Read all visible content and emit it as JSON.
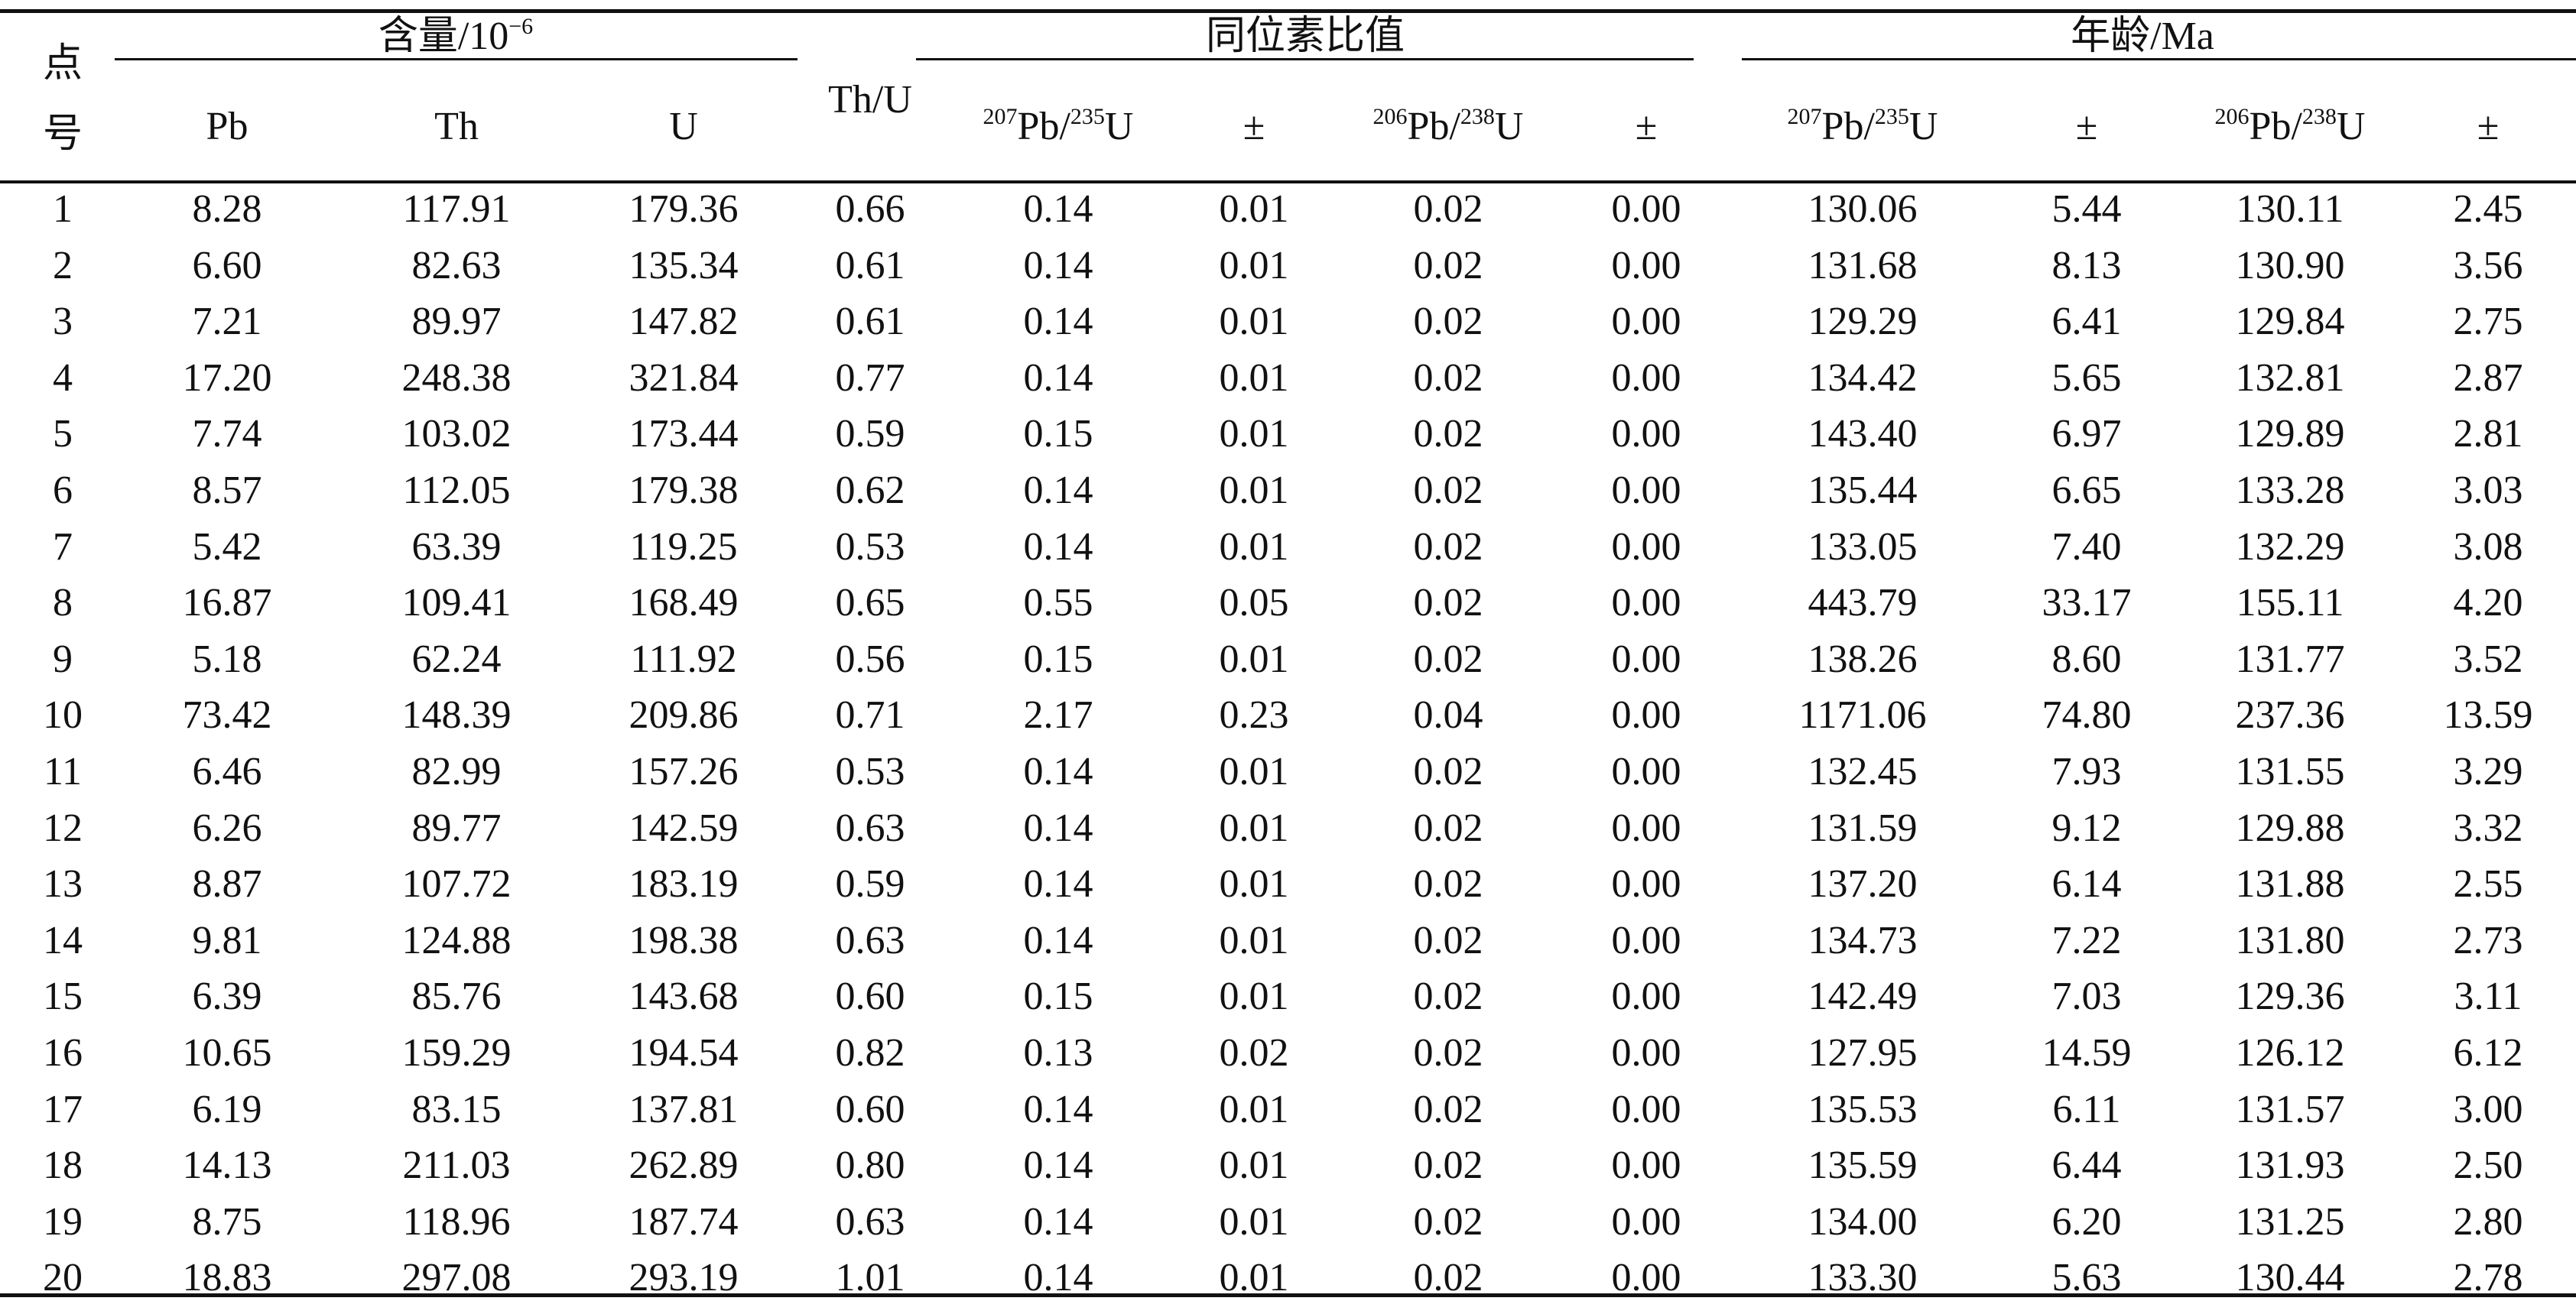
{
  "table": {
    "group_headers": {
      "point_no_top": "点",
      "point_no_bottom": "号",
      "content": "含量/10",
      "content_exp": "−6",
      "th_u": "Th/U",
      "isotope_ratio": "同位素比值",
      "age": "年龄/Ma"
    },
    "sub_headers": {
      "pb": "Pb",
      "th": "Th",
      "u": "U",
      "r_a_sup": "207",
      "r_a_mid": "Pb/",
      "r_a_sup2": "235",
      "r_a_end": "U",
      "pm": "±",
      "r_b_sup": "206",
      "r_b_mid": "Pb/",
      "r_b_sup2": "238",
      "r_b_end": "U"
    },
    "rows": [
      [
        "1",
        "8.28",
        "117.91",
        "179.36",
        "0.66",
        "0.14",
        "0.01",
        "0.02",
        "0.00",
        "130.06",
        "5.44",
        "130.11",
        "2.45"
      ],
      [
        "2",
        "6.60",
        "82.63",
        "135.34",
        "0.61",
        "0.14",
        "0.01",
        "0.02",
        "0.00",
        "131.68",
        "8.13",
        "130.90",
        "3.56"
      ],
      [
        "3",
        "7.21",
        "89.97",
        "147.82",
        "0.61",
        "0.14",
        "0.01",
        "0.02",
        "0.00",
        "129.29",
        "6.41",
        "129.84",
        "2.75"
      ],
      [
        "4",
        "17.20",
        "248.38",
        "321.84",
        "0.77",
        "0.14",
        "0.01",
        "0.02",
        "0.00",
        "134.42",
        "5.65",
        "132.81",
        "2.87"
      ],
      [
        "5",
        "7.74",
        "103.02",
        "173.44",
        "0.59",
        "0.15",
        "0.01",
        "0.02",
        "0.00",
        "143.40",
        "6.97",
        "129.89",
        "2.81"
      ],
      [
        "6",
        "8.57",
        "112.05",
        "179.38",
        "0.62",
        "0.14",
        "0.01",
        "0.02",
        "0.00",
        "135.44",
        "6.65",
        "133.28",
        "3.03"
      ],
      [
        "7",
        "5.42",
        "63.39",
        "119.25",
        "0.53",
        "0.14",
        "0.01",
        "0.02",
        "0.00",
        "133.05",
        "7.40",
        "132.29",
        "3.08"
      ],
      [
        "8",
        "16.87",
        "109.41",
        "168.49",
        "0.65",
        "0.55",
        "0.05",
        "0.02",
        "0.00",
        "443.79",
        "33.17",
        "155.11",
        "4.20"
      ],
      [
        "9",
        "5.18",
        "62.24",
        "111.92",
        "0.56",
        "0.15",
        "0.01",
        "0.02",
        "0.00",
        "138.26",
        "8.60",
        "131.77",
        "3.52"
      ],
      [
        "10",
        "73.42",
        "148.39",
        "209.86",
        "0.71",
        "2.17",
        "0.23",
        "0.04",
        "0.00",
        "1171.06",
        "74.80",
        "237.36",
        "13.59"
      ],
      [
        "11",
        "6.46",
        "82.99",
        "157.26",
        "0.53",
        "0.14",
        "0.01",
        "0.02",
        "0.00",
        "132.45",
        "7.93",
        "131.55",
        "3.29"
      ],
      [
        "12",
        "6.26",
        "89.77",
        "142.59",
        "0.63",
        "0.14",
        "0.01",
        "0.02",
        "0.00",
        "131.59",
        "9.12",
        "129.88",
        "3.32"
      ],
      [
        "13",
        "8.87",
        "107.72",
        "183.19",
        "0.59",
        "0.14",
        "0.01",
        "0.02",
        "0.00",
        "137.20",
        "6.14",
        "131.88",
        "2.55"
      ],
      [
        "14",
        "9.81",
        "124.88",
        "198.38",
        "0.63",
        "0.14",
        "0.01",
        "0.02",
        "0.00",
        "134.73",
        "7.22",
        "131.80",
        "2.73"
      ],
      [
        "15",
        "6.39",
        "85.76",
        "143.68",
        "0.60",
        "0.15",
        "0.01",
        "0.02",
        "0.00",
        "142.49",
        "7.03",
        "129.36",
        "3.11"
      ],
      [
        "16",
        "10.65",
        "159.29",
        "194.54",
        "0.82",
        "0.13",
        "0.02",
        "0.02",
        "0.00",
        "127.95",
        "14.59",
        "126.12",
        "6.12"
      ],
      [
        "17",
        "6.19",
        "83.15",
        "137.81",
        "0.60",
        "0.14",
        "0.01",
        "0.02",
        "0.00",
        "135.53",
        "6.11",
        "131.57",
        "3.00"
      ],
      [
        "18",
        "14.13",
        "211.03",
        "262.89",
        "0.80",
        "0.14",
        "0.01",
        "0.02",
        "0.00",
        "135.59",
        "6.44",
        "131.93",
        "2.50"
      ],
      [
        "19",
        "8.75",
        "118.96",
        "187.74",
        "0.63",
        "0.14",
        "0.01",
        "0.02",
        "0.00",
        "134.00",
        "6.20",
        "131.25",
        "2.80"
      ],
      [
        "20",
        "18.83",
        "297.08",
        "293.19",
        "1.01",
        "0.14",
        "0.01",
        "0.02",
        "0.00",
        "133.30",
        "5.63",
        "130.44",
        "2.78"
      ]
    ]
  }
}
